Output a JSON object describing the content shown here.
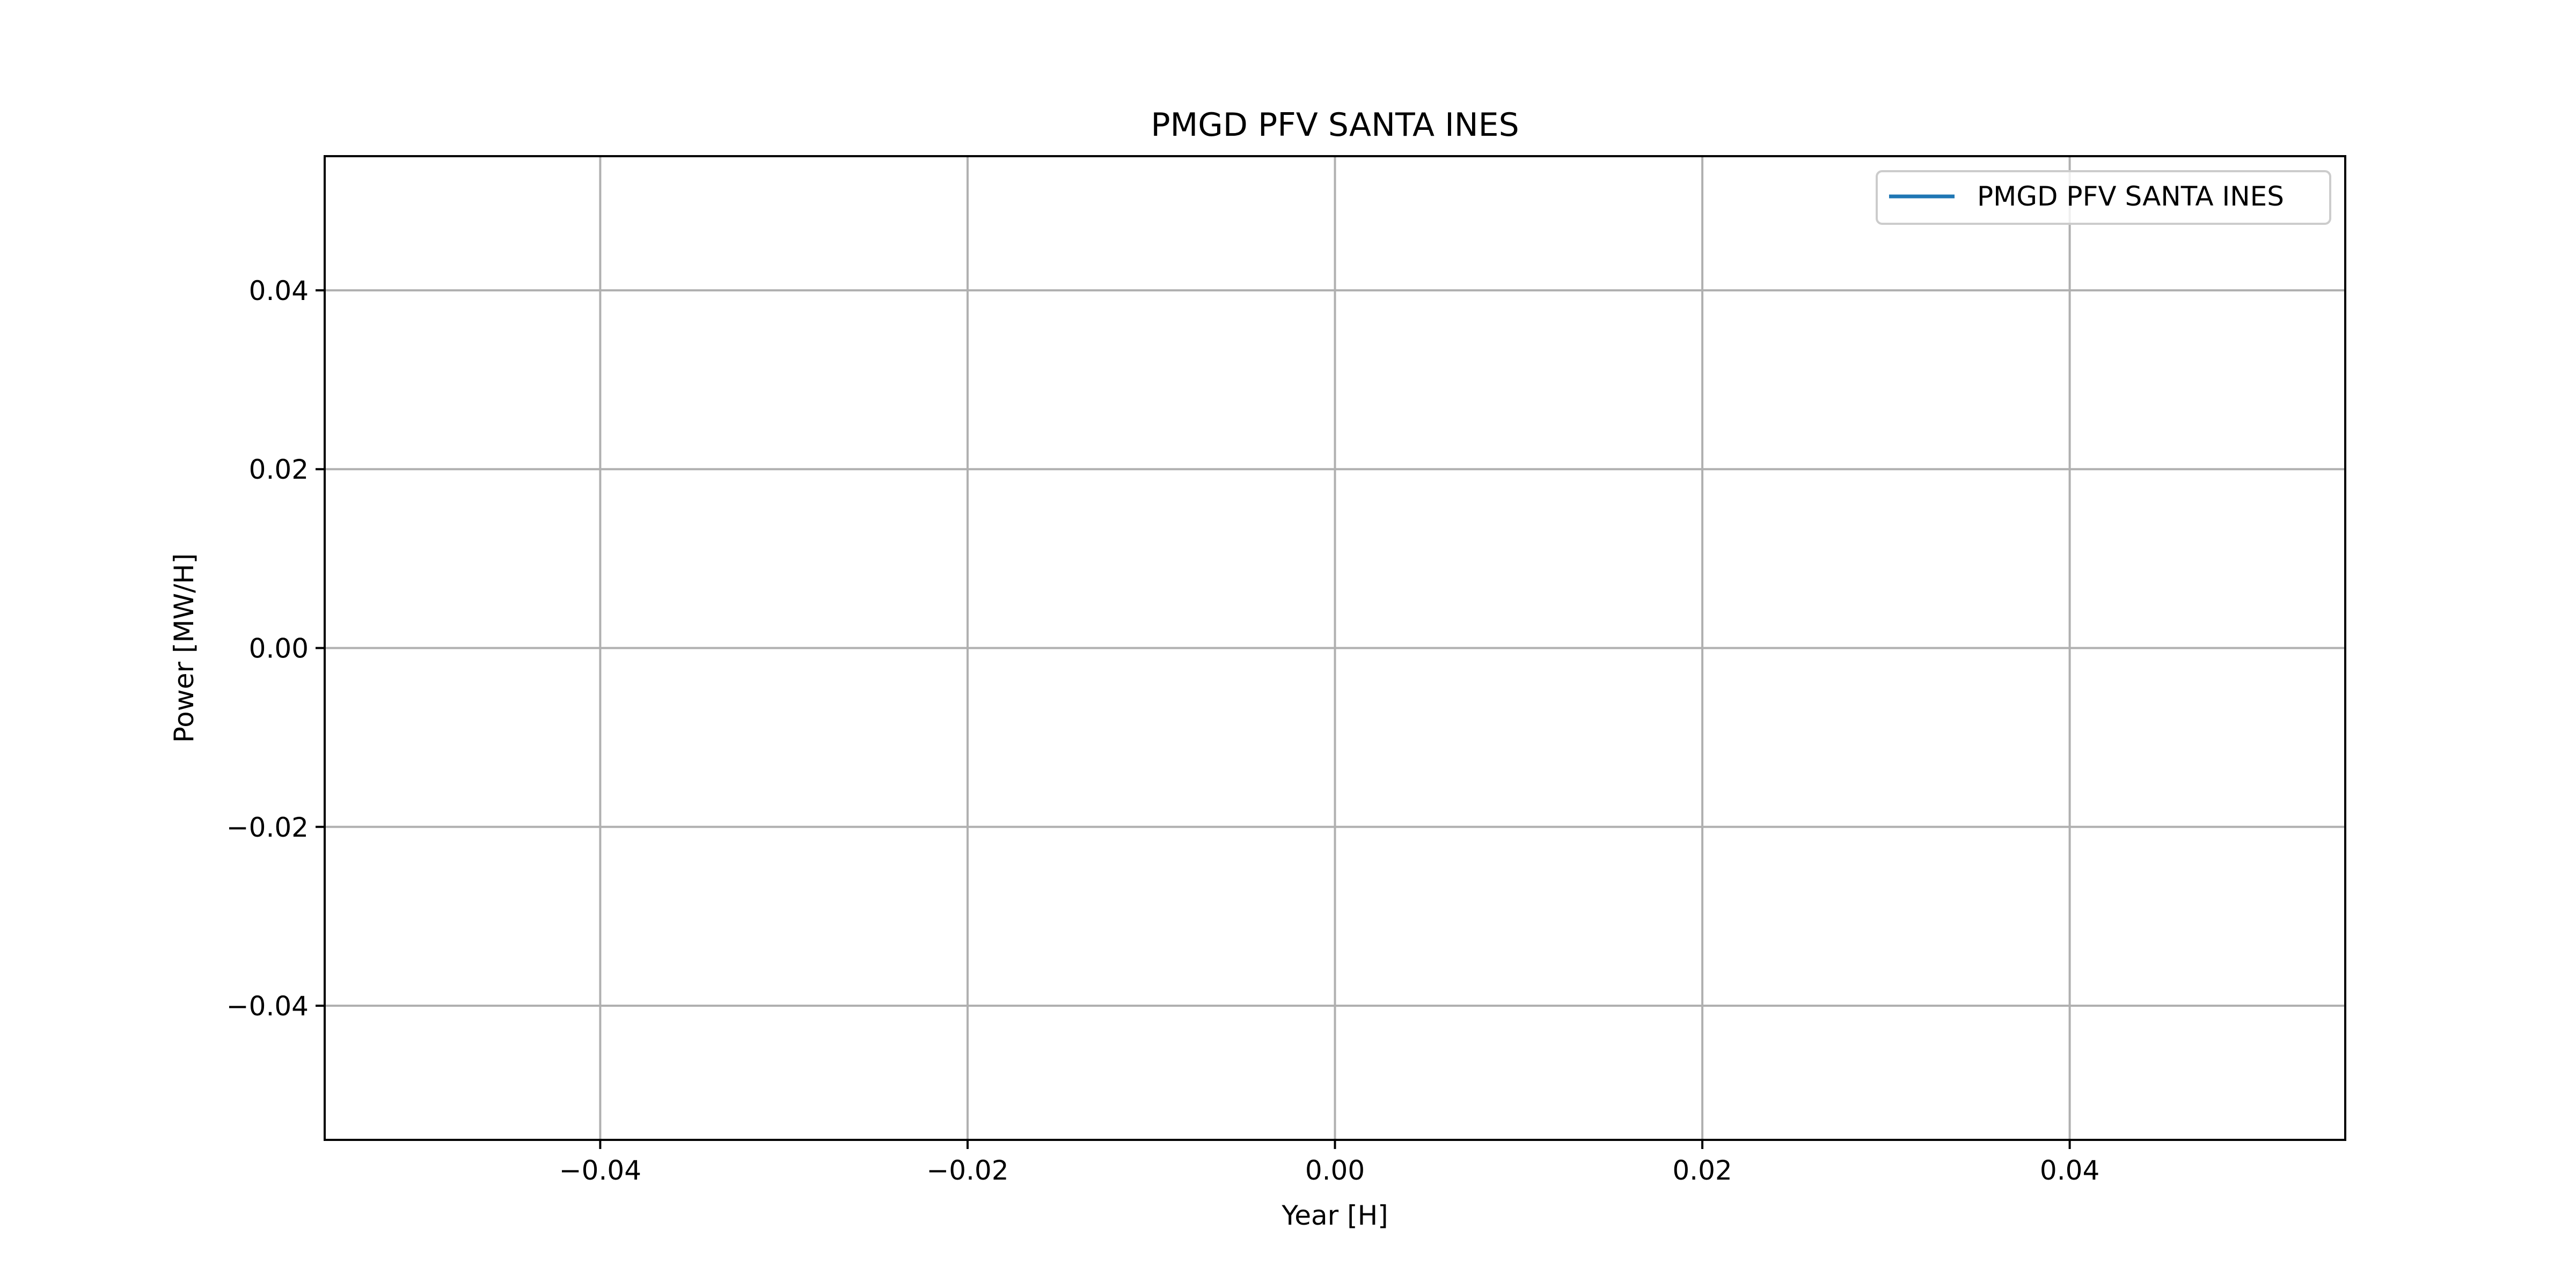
{
  "chart_data": {
    "type": "line",
    "title": "PMGD PFV SANTA INES",
    "xlabel": "Year [H]",
    "ylabel": "Power [MW/H]",
    "xlim": [
      -0.055,
      0.055
    ],
    "ylim": [
      -0.055,
      0.055
    ],
    "x_ticks": [
      -0.04,
      -0.02,
      0.0,
      0.02,
      0.04
    ],
    "x_tick_labels": [
      "−0.04",
      "−0.02",
      "0.00",
      "0.02",
      "0.04"
    ],
    "y_ticks": [
      0.04,
      0.02,
      0.0,
      -0.02,
      -0.04
    ],
    "y_tick_labels": [
      "0.04",
      "0.02",
      "0.00",
      "−0.02",
      "−0.04"
    ],
    "grid": true,
    "legend_position": "top-right",
    "series": [
      {
        "name": "PMGD PFV SANTA INES",
        "color": "#1f77b4",
        "x": [],
        "y": []
      }
    ]
  }
}
